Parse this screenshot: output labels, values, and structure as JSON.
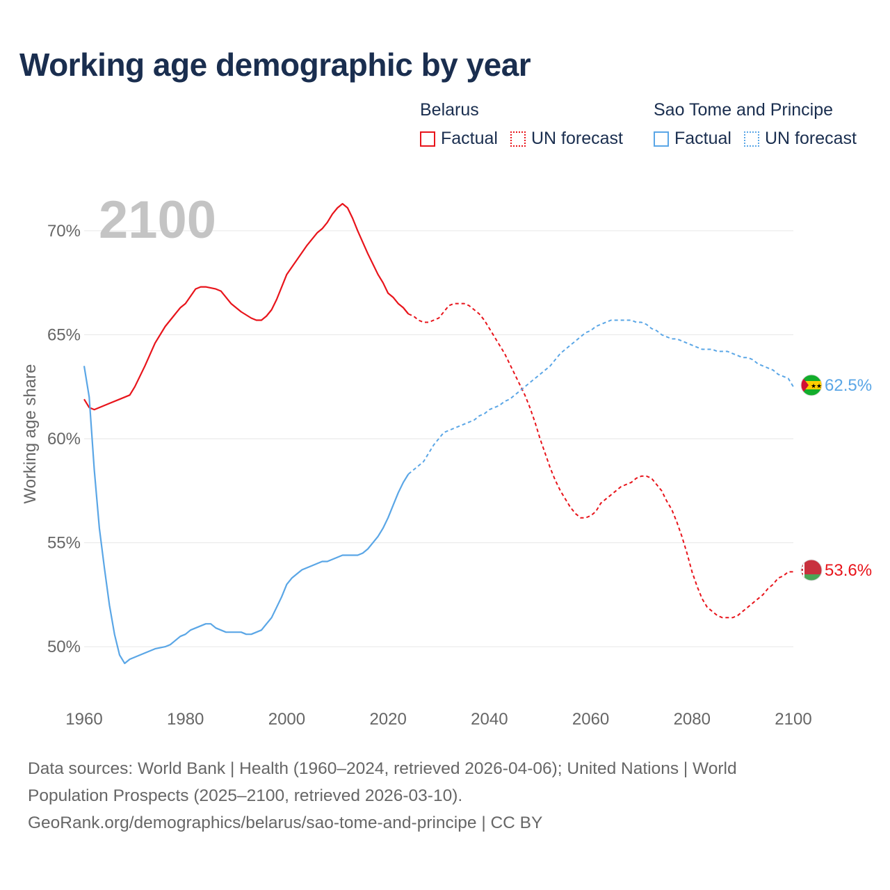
{
  "title": "Working age demographic by year",
  "legend": [
    {
      "group": "Belarus",
      "items": [
        {
          "label": "Factual",
          "color": "#e8141b",
          "style": "solid"
        },
        {
          "label": "UN forecast",
          "color": "#e8141b",
          "style": "dotted"
        }
      ]
    },
    {
      "group": "Sao Tome and Principe",
      "items": [
        {
          "label": "Factual",
          "color": "#5aa6e6",
          "style": "solid"
        },
        {
          "label": "UN forecast",
          "color": "#5aa6e6",
          "style": "dotted"
        }
      ]
    }
  ],
  "year_watermark": "2100",
  "footer": {
    "line1": "Data sources: World Bank | Health (1960–2024, retrieved 2026-04-06); United Nations | World",
    "line2": "Population Prospects (2025–2100, retrieved 2026-03-10).",
    "line3": "GeoRank.org/demographics/belarus/sao-tome-and-principe | CC BY"
  },
  "chart_data": {
    "type": "line",
    "title": "Working age demographic by year",
    "xlabel": "",
    "ylabel": "Working age share",
    "xlim": [
      1960,
      2100
    ],
    "ylim": [
      48.5,
      71.5
    ],
    "x_ticks": [
      1960,
      1980,
      2000,
      2020,
      2040,
      2060,
      2080,
      2100
    ],
    "y_ticks": [
      50,
      55,
      60,
      65,
      70
    ],
    "y_tick_labels": [
      "50%",
      "55%",
      "60%",
      "65%",
      "70%"
    ],
    "grid": true,
    "series": [
      {
        "name": "Belarus",
        "color": "#e8141b",
        "end_label": "53.6%",
        "factual": {
          "x": [
            1960,
            1961,
            1962,
            1963,
            1965,
            1967,
            1969,
            1970,
            1972,
            1974,
            1976,
            1978,
            1979,
            1980,
            1982,
            1983,
            1984,
            1986,
            1987,
            1989,
            1991,
            1993,
            1994,
            1995,
            1996,
            1997,
            1998,
            2000,
            2002,
            2004,
            2006,
            2007,
            2008,
            2009,
            2010,
            2011,
            2012,
            2013,
            2014,
            2016,
            2018,
            2019,
            2020,
            2021,
            2022,
            2023,
            2024
          ],
          "y": [
            61.9,
            61.5,
            61.4,
            61.5,
            61.7,
            61.9,
            62.1,
            62.5,
            63.5,
            64.6,
            65.4,
            66.0,
            66.3,
            66.5,
            67.2,
            67.3,
            67.3,
            67.2,
            67.1,
            66.5,
            66.1,
            65.8,
            65.7,
            65.7,
            65.9,
            66.2,
            66.7,
            67.9,
            68.6,
            69.3,
            69.9,
            70.1,
            70.4,
            70.8,
            71.1,
            71.3,
            71.1,
            70.6,
            70.0,
            68.9,
            67.9,
            67.5,
            67.0,
            66.8,
            66.5,
            66.3,
            66.0
          ]
        },
        "forecast": {
          "x": [
            2024,
            2025,
            2026,
            2027,
            2028,
            2029,
            2030,
            2031,
            2032,
            2033,
            2034,
            2035,
            2036,
            2037,
            2038,
            2039,
            2040,
            2041,
            2042,
            2043,
            2044,
            2045,
            2046,
            2047,
            2048,
            2049,
            2050,
            2051,
            2052,
            2053,
            2054,
            2055,
            2056,
            2057,
            2058,
            2059,
            2060,
            2061,
            2062,
            2063,
            2064,
            2065,
            2066,
            2067,
            2068,
            2069,
            2070,
            2071,
            2072,
            2073,
            2074,
            2075,
            2076,
            2077,
            2078,
            2079,
            2080,
            2081,
            2082,
            2083,
            2084,
            2085,
            2086,
            2087,
            2088,
            2089,
            2090,
            2091,
            2092,
            2093,
            2094,
            2095,
            2096,
            2097,
            2098,
            2099,
            2100
          ],
          "y": [
            66.0,
            65.9,
            65.7,
            65.6,
            65.6,
            65.7,
            65.8,
            66.1,
            66.4,
            66.5,
            66.5,
            66.5,
            66.4,
            66.2,
            66.0,
            65.7,
            65.3,
            64.9,
            64.5,
            64.1,
            63.6,
            63.1,
            62.6,
            62.1,
            61.5,
            60.8,
            60.0,
            59.3,
            58.6,
            58.0,
            57.5,
            57.1,
            56.7,
            56.4,
            56.2,
            56.2,
            56.3,
            56.5,
            56.9,
            57.1,
            57.3,
            57.5,
            57.7,
            57.8,
            57.9,
            58.1,
            58.2,
            58.2,
            58.1,
            57.8,
            57.5,
            57.0,
            56.6,
            56.0,
            55.3,
            54.5,
            53.6,
            52.9,
            52.3,
            51.9,
            51.7,
            51.5,
            51.4,
            51.4,
            51.4,
            51.5,
            51.7,
            51.9,
            52.1,
            52.3,
            52.5,
            52.8,
            53.0,
            53.3,
            53.4,
            53.6,
            53.6
          ]
        }
      },
      {
        "name": "Sao Tome and Principe",
        "color": "#5aa6e6",
        "end_label": "62.5%",
        "factual": {
          "x": [
            1960,
            1961,
            1962,
            1963,
            1964,
            1965,
            1966,
            1967,
            1968,
            1969,
            1970,
            1971,
            1973,
            1974,
            1976,
            1977,
            1978,
            1979,
            1980,
            1981,
            1982,
            1983,
            1984,
            1985,
            1986,
            1987,
            1988,
            1989,
            1990,
            1991,
            1992,
            1993,
            1994,
            1995,
            1996,
            1997,
            1998,
            1999,
            2000,
            2001,
            2002,
            2003,
            2004,
            2005,
            2006,
            2007,
            2008,
            2009,
            2010,
            2011,
            2012,
            2013,
            2014,
            2015,
            2016,
            2017,
            2018,
            2019,
            2020,
            2021,
            2022,
            2023,
            2024
          ],
          "y": [
            63.5,
            62.0,
            58.5,
            55.7,
            53.8,
            52.0,
            50.6,
            49.6,
            49.2,
            49.4,
            49.5,
            49.6,
            49.8,
            49.9,
            50.0,
            50.1,
            50.3,
            50.5,
            50.6,
            50.8,
            50.9,
            51.0,
            51.1,
            51.1,
            50.9,
            50.8,
            50.7,
            50.7,
            50.7,
            50.7,
            50.6,
            50.6,
            50.7,
            50.8,
            51.1,
            51.4,
            51.9,
            52.4,
            53.0,
            53.3,
            53.5,
            53.7,
            53.8,
            53.9,
            54.0,
            54.1,
            54.1,
            54.2,
            54.3,
            54.4,
            54.4,
            54.4,
            54.4,
            54.5,
            54.7,
            55.0,
            55.3,
            55.7,
            56.2,
            56.8,
            57.4,
            57.9,
            58.3
          ]
        },
        "forecast": {
          "x": [
            2024,
            2025,
            2026,
            2027,
            2028,
            2029,
            2030,
            2031,
            2032,
            2033,
            2034,
            2035,
            2036,
            2037,
            2038,
            2039,
            2040,
            2041,
            2042,
            2043,
            2044,
            2045,
            2046,
            2047,
            2048,
            2049,
            2050,
            2051,
            2052,
            2053,
            2054,
            2055,
            2056,
            2057,
            2058,
            2059,
            2060,
            2061,
            2062,
            2063,
            2064,
            2065,
            2066,
            2067,
            2068,
            2069,
            2070,
            2071,
            2072,
            2073,
            2074,
            2075,
            2076,
            2077,
            2078,
            2079,
            2080,
            2081,
            2082,
            2083,
            2084,
            2085,
            2086,
            2087,
            2088,
            2089,
            2090,
            2091,
            2092,
            2093,
            2094,
            2095,
            2096,
            2097,
            2098,
            2099,
            2100
          ],
          "y": [
            58.3,
            58.5,
            58.7,
            58.9,
            59.3,
            59.7,
            60.0,
            60.3,
            60.4,
            60.5,
            60.6,
            60.7,
            60.8,
            60.9,
            61.1,
            61.2,
            61.4,
            61.5,
            61.6,
            61.8,
            61.9,
            62.1,
            62.3,
            62.5,
            62.7,
            62.9,
            63.1,
            63.3,
            63.5,
            63.8,
            64.1,
            64.3,
            64.5,
            64.7,
            64.9,
            65.1,
            65.2,
            65.4,
            65.5,
            65.6,
            65.7,
            65.7,
            65.7,
            65.7,
            65.7,
            65.6,
            65.6,
            65.5,
            65.3,
            65.2,
            65.0,
            64.9,
            64.8,
            64.8,
            64.7,
            64.6,
            64.5,
            64.4,
            64.3,
            64.3,
            64.3,
            64.2,
            64.2,
            64.2,
            64.1,
            64.0,
            63.9,
            63.9,
            63.8,
            63.6,
            63.5,
            63.4,
            63.3,
            63.1,
            63.0,
            62.9,
            62.5
          ]
        }
      }
    ]
  }
}
